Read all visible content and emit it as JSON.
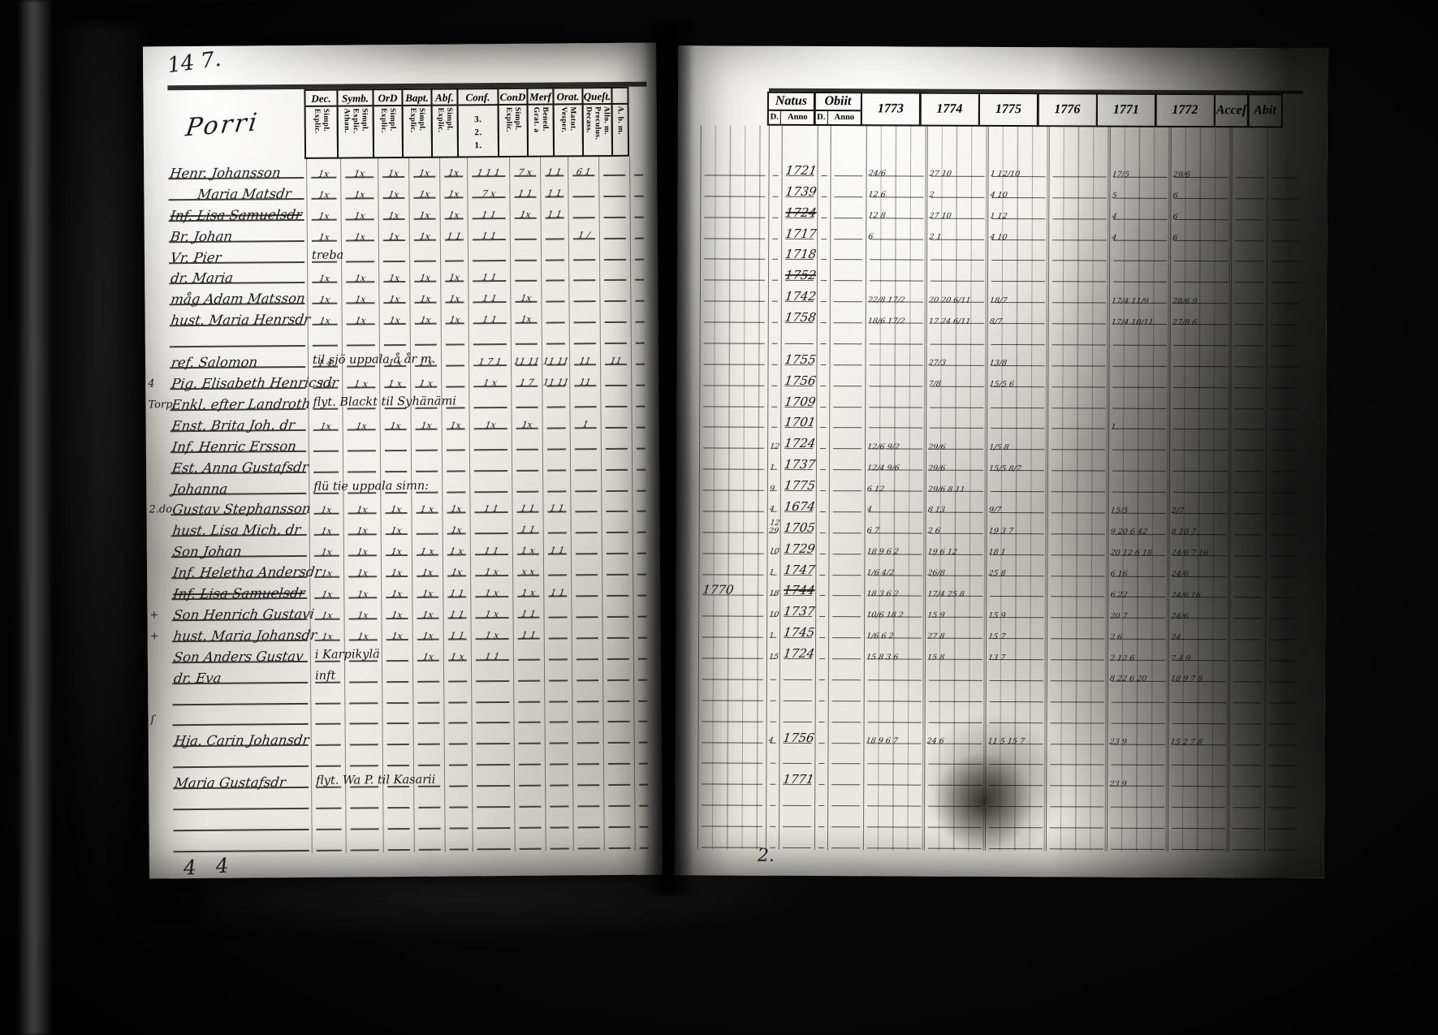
{
  "labels": {
    "top_left": "14 7.",
    "bottom_left": "4 4",
    "bottom_center": "2."
  },
  "left_page": {
    "title": "Porri",
    "columns": [
      {
        "label": "Dec.",
        "sub": [
          "Explic.",
          "Simpl."
        ]
      },
      {
        "label": "Symb.",
        "sub": [
          "Athan.",
          "Explic.",
          "Simpl."
        ]
      },
      {
        "label": "OrD",
        "sub": [
          "Explic.",
          "Simpl."
        ]
      },
      {
        "label": "Bapt.",
        "sub": [
          "Explic.",
          "Simpl."
        ]
      },
      {
        "label": "Abſ.",
        "sub": [
          "Explic.",
          "Simpl."
        ]
      },
      {
        "label": "Conf.",
        "sub": [
          "3.",
          "2.",
          "1."
        ],
        "stacked": true
      },
      {
        "label": "ConD",
        "sub": [
          "Explic.",
          "Simpl."
        ]
      },
      {
        "label": "Merf",
        "sub": [
          "Grat. a",
          "Bened."
        ]
      },
      {
        "label": "Orat.",
        "sub": [
          "Vesper.",
          "Matut."
        ]
      },
      {
        "label": "Queſt.",
        "sub": [
          "Decass.",
          "Preculus.",
          "Allo. m."
        ]
      },
      {
        "label": "",
        "sub": [
          "A. b. m."
        ]
      }
    ]
  },
  "right_page": {
    "columns": {
      "natus": "Natus",
      "obiit": "Obiit",
      "years": [
        "1773",
        "1774",
        "1775",
        "1776",
        "1771",
        "1772"
      ],
      "accessit": "Acceſ",
      "abit": "Abit"
    },
    "sub_headers": [
      "D.",
      "Anno",
      "D.",
      "Anno"
    ]
  },
  "rows": [
    {
      "name": "Henr. Johansson",
      "marks": [
        "1x",
        "1x",
        "1x",
        "1x",
        "1x",
        "1 1 1",
        "7 x",
        "1 1",
        "6 1",
        ""
      ],
      "natus": "1721",
      "y1773": "24/6",
      "y1774": "27 10",
      "y1775": "1 12/10",
      "y1771": "17/5",
      "y1772": "29/6"
    },
    {
      "name": "Maria Matsdr",
      "indent": 36,
      "marks": [
        "1x",
        "1x",
        "1x",
        "1x",
        "1x",
        "7 x",
        "1 1",
        "1 1",
        "",
        ""
      ],
      "natus": "1739",
      "y1773": "12 6",
      "y1774": "2",
      "y1775": "4 10",
      "y1771": "5",
      "y1772": "6"
    },
    {
      "name": "Inf. Lisa Samuelsdr",
      "struck": true,
      "marks": [
        "1x",
        "1x",
        "1x",
        "1x",
        "1x",
        "1 1",
        "1x",
        "1 1",
        "",
        ""
      ],
      "natus": "1724",
      "y1773": "12 8",
      "y1774": "27 10",
      "y1775": "1 12",
      "y1771": "4",
      "y1772": "6"
    },
    {
      "name": "Br. Johan",
      "marks": [
        "1x",
        "1x",
        "1x",
        "1x",
        "1 1",
        "1 1",
        "",
        "",
        "1 /",
        ""
      ],
      "natus": "1717",
      "y1773": "6",
      "y1774": "2 1",
      "y1775": "4 10",
      "y1771": "4",
      "y1772": "6"
    },
    {
      "name": "Vr. Pier",
      "note": "treba",
      "natus": "1718"
    },
    {
      "name": "dr. Maria",
      "struck_year": true,
      "marks": [
        "1x",
        "1x",
        "1x",
        "1x",
        "1x",
        "1 1",
        "",
        "",
        "",
        ""
      ],
      "natus": "1752"
    },
    {
      "name": "måg Adam Matsson",
      "marks": [
        "1x",
        "1x",
        "1x",
        "1x",
        "1x",
        "1 1",
        "1x",
        "",
        "",
        ""
      ],
      "natus": "1742",
      "y1773": "22/8 17/2",
      "y1774": "20 20 6/11",
      "y1775": "18/7",
      "y1771": "17/4 11/9",
      "y1772": "28/6 9"
    },
    {
      "name": "hust. Maria Henrsdr",
      "marks": [
        "1x",
        "1x",
        "1x",
        "1x",
        "1x",
        "1 1",
        "1x",
        "",
        "",
        ""
      ],
      "natus": "1758",
      "y1773": "18/6 17/2",
      "y1774": "17 24 6/11",
      "y1775": "8/7",
      "y1771": "17/4 10/11",
      "y1772": "27/8 6"
    },
    {},
    {
      "name": "ref. Salomon",
      "note": "til sjö uppala å år m.",
      "marks": [
        "1 4",
        "",
        "1 x",
        "1 x",
        "",
        "1 7 1",
        "11 11",
        "11 11",
        "11",
        "11"
      ],
      "natus": "1755",
      "y1774": "27/3",
      "y1775": "13/8"
    },
    {
      "m": "4",
      "name": "Pig. Elisabeth Henricsdr",
      "marks": [
        "1 x",
        "1 x",
        "1 x",
        "1 x",
        "",
        "1 x",
        "1 7",
        "11 11",
        "11",
        ""
      ],
      "natus": "1756",
      "y1774": "7/8",
      "y1775": "15/5 6"
    },
    {
      "m": "Torp.",
      "name": "Enkl. efter Landroth",
      "note": "flyt. Blackt til Syhänämi",
      "natus": "1709"
    },
    {
      "name": "Enst. Brita Joh. dr",
      "marks": [
        "1x",
        "1x",
        "1x",
        "1x",
        "1x",
        "1x",
        "1x",
        "",
        "1",
        ""
      ],
      "natus": "1701",
      "y1771": "1."
    },
    {
      "name": "Inf. Henric Ersson",
      "natus": "1724",
      "nd": "12",
      "y1773": "12/6 9/2",
      "y1774": "29/6",
      "y1775": "1/5 8"
    },
    {
      "name": "Est. Anna Gustafsdr",
      "natus": "1737",
      "nd": "1",
      "y1773": "12/4 9/6",
      "y1774": "29/6",
      "y1775": "15/5 8/7"
    },
    {
      "name": "Johanna",
      "note": "flü tie uppala simn:",
      "natus": "1775",
      "nd": "9",
      "y1773": "6 12",
      "y1774": "29/6 8 11"
    },
    {
      "m": "2.do",
      "name": "Gustav Stephansson",
      "marks": [
        "1x",
        "1x",
        "1x",
        "1 x",
        "1x",
        "1 1",
        "1 1",
        "1 1",
        "",
        ""
      ],
      "natus": "1674",
      "nd": "4",
      "y1773": "4",
      "y1774": "8 13",
      "y1775": "9/7",
      "y1771": "15/5",
      "y1772": "2/7"
    },
    {
      "name": "hust. Lisa Mich. dr",
      "marks": [
        "1x",
        "1x",
        "1x",
        "",
        "1x",
        "",
        "1 1",
        "",
        "",
        ""
      ],
      "natus": "1705",
      "nd": "12 29",
      "y1773": "6 7",
      "y1774": "2 6",
      "y1775": "19 3 7",
      "y1771": "9 20 6 42",
      "y1772": "8 10 7"
    },
    {
      "name": "Son Johan",
      "marks": [
        "1x",
        "1x",
        "1x",
        "1 x",
        "1 x",
        "1 1",
        "1 x",
        "1 1",
        "",
        ""
      ],
      "natus": "1729",
      "nd": "10",
      "y1773": "18 9 6 2",
      "y1774": "19 6 12",
      "y1775": "18 1",
      "y1771": "20 12 6 18",
      "y1772": "24/6 7 16"
    },
    {
      "name": "Inf. Heletha Andersdr",
      "marks": [
        "1x",
        "1x",
        "1x",
        "1x",
        "1x",
        "1 x",
        "x x",
        "",
        "",
        ""
      ],
      "natus": "1747",
      "nd": "1",
      "y1773": "1/6 4/2",
      "y1774": "26/8",
      "y1775": "25 8",
      "y1771": "6 16",
      "y1772": "24/6"
    },
    {
      "name": "Inf. Lisa Samuelsdr",
      "struck": true,
      "marks": [
        "1x",
        "1x",
        "1x",
        "1x",
        "1 1",
        "1 x",
        "1 x",
        "1 1",
        "",
        ""
      ],
      "natus": "1744",
      "obiit": "1770",
      "nd": "18",
      "y1773": "18 3 6 2",
      "y1774": "17/4 25 8",
      "y1771": "6 22",
      "y1772": "24/6 16"
    },
    {
      "m": "+",
      "name": "Son Henrich Gustavi",
      "marks": [
        "1x",
        "1x",
        "1x",
        "1x",
        "1 1",
        "1 x",
        "1 1",
        "",
        "",
        ""
      ],
      "natus": "1737",
      "nd": "10",
      "y1773": "10/6 18 2",
      "y1774": "15 9",
      "y1775": "15 9",
      "y1771": "20 7",
      "y1772": "24/6"
    },
    {
      "m": "+",
      "name": "hust. Maria Johansdr",
      "marks": [
        "1x",
        "1x",
        "1x",
        "1x",
        "1 1",
        "1 x",
        "1 1",
        "",
        "",
        ""
      ],
      "natus": "1745",
      "nd": "1",
      "y1773": "1/6 6 2",
      "y1774": "27 8",
      "y1775": "15 7",
      "y1771": "2 6",
      "y1772": "24"
    },
    {
      "name": "Son Anders Gustav",
      "note": "i Karpikylä",
      "marks": [
        "",
        "",
        "",
        "1x",
        "1 x",
        "1 1",
        "",
        "",
        "",
        ""
      ],
      "natus": "1724",
      "nd": "15",
      "y1773": "15 8 3 6",
      "y1774": "15 8",
      "y1775": "13 7",
      "y1771": "2 12 6",
      "y1772": "7 4 9"
    },
    {
      "name": "dr. Eva",
      "note": "inft",
      "y1771": "8 22 6 20",
      "y1772": "18 9 7 8"
    },
    {},
    {
      "m": "ſ"
    },
    {
      "name": "Hja. Carin Johansdr",
      "natus": "1756",
      "nd": "4",
      "y1773": "18 9 6 7",
      "y1774": "24 6",
      "y1775": "11 5 15 7",
      "y1771": "23 9",
      "y1772": "15 2 7 8"
    },
    {},
    {
      "name": "Maria Gustafsdr",
      "note": "flyt. Wa P. til Kasarii",
      "natus": "1771",
      "y1771": "23 9"
    },
    {},
    {},
    {}
  ]
}
